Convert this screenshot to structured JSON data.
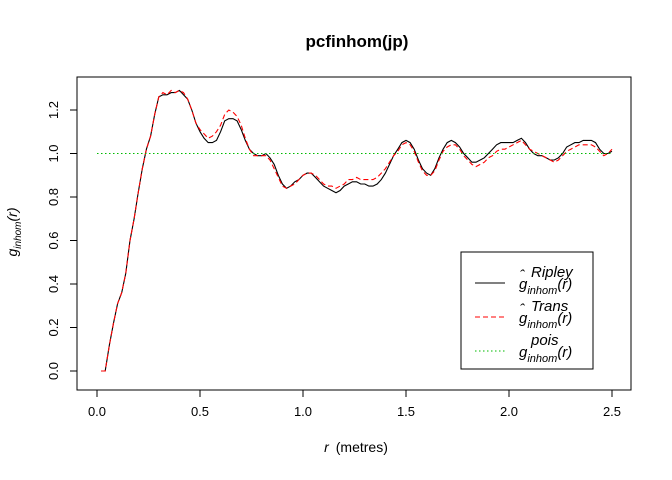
{
  "chart_data": {
    "type": "line",
    "title": "pcfinhom(jp)",
    "xlabel": {
      "symbol": "r",
      "unit": "(metres)"
    },
    "ylabel": {
      "main": "g",
      "subscript": "inhom",
      "arg": "(r)"
    },
    "xlim": [
      0,
      2.5
    ],
    "ylim": [
      0,
      1.3
    ],
    "x_ticks": [
      "0.0",
      "0.5",
      "1.0",
      "1.5",
      "2.0",
      "2.5"
    ],
    "y_ticks": [
      "0.0",
      "0.2",
      "0.4",
      "0.6",
      "0.8",
      "1.0",
      "1.2"
    ],
    "legend_position": "bottom-right",
    "grid": false,
    "series": [
      {
        "name": "Ripley",
        "label": {
          "hat": true,
          "main": "g",
          "sub": "inhom",
          "sup": "Ripley",
          "arg": "(r)"
        },
        "color": "#000000",
        "dash": "solid",
        "points": [
          [
            0.02,
            0.0
          ],
          [
            0.04,
            0.0
          ],
          [
            0.06,
            0.12
          ],
          [
            0.08,
            0.22
          ],
          [
            0.1,
            0.31
          ],
          [
            0.12,
            0.36
          ],
          [
            0.14,
            0.45
          ],
          [
            0.16,
            0.6
          ],
          [
            0.18,
            0.7
          ],
          [
            0.2,
            0.82
          ],
          [
            0.22,
            0.93
          ],
          [
            0.24,
            1.02
          ],
          [
            0.26,
            1.08
          ],
          [
            0.28,
            1.18
          ],
          [
            0.3,
            1.26
          ],
          [
            0.32,
            1.27
          ],
          [
            0.34,
            1.27
          ],
          [
            0.36,
            1.28
          ],
          [
            0.38,
            1.28
          ],
          [
            0.4,
            1.29
          ],
          [
            0.42,
            1.27
          ],
          [
            0.44,
            1.25
          ],
          [
            0.46,
            1.2
          ],
          [
            0.48,
            1.14
          ],
          [
            0.5,
            1.1
          ],
          [
            0.52,
            1.07
          ],
          [
            0.54,
            1.05
          ],
          [
            0.56,
            1.05
          ],
          [
            0.58,
            1.06
          ],
          [
            0.6,
            1.1
          ],
          [
            0.62,
            1.15
          ],
          [
            0.64,
            1.16
          ],
          [
            0.66,
            1.16
          ],
          [
            0.68,
            1.15
          ],
          [
            0.7,
            1.11
          ],
          [
            0.72,
            1.06
          ],
          [
            0.74,
            1.02
          ],
          [
            0.76,
            1.0
          ],
          [
            0.78,
            0.99
          ],
          [
            0.8,
            0.99
          ],
          [
            0.82,
            1.0
          ],
          [
            0.84,
            0.98
          ],
          [
            0.86,
            0.95
          ],
          [
            0.88,
            0.9
          ],
          [
            0.9,
            0.86
          ],
          [
            0.92,
            0.84
          ],
          [
            0.94,
            0.85
          ],
          [
            0.96,
            0.87
          ],
          [
            0.98,
            0.88
          ],
          [
            1.0,
            0.9
          ],
          [
            1.02,
            0.91
          ],
          [
            1.04,
            0.91
          ],
          [
            1.06,
            0.89
          ],
          [
            1.08,
            0.87
          ],
          [
            1.1,
            0.85
          ],
          [
            1.12,
            0.84
          ],
          [
            1.14,
            0.83
          ],
          [
            1.16,
            0.82
          ],
          [
            1.18,
            0.83
          ],
          [
            1.2,
            0.85
          ],
          [
            1.22,
            0.86
          ],
          [
            1.24,
            0.87
          ],
          [
            1.26,
            0.87
          ],
          [
            1.28,
            0.86
          ],
          [
            1.3,
            0.86
          ],
          [
            1.32,
            0.85
          ],
          [
            1.34,
            0.85
          ],
          [
            1.36,
            0.86
          ],
          [
            1.38,
            0.88
          ],
          [
            1.4,
            0.91
          ],
          [
            1.42,
            0.95
          ],
          [
            1.44,
            0.99
          ],
          [
            1.46,
            1.02
          ],
          [
            1.48,
            1.05
          ],
          [
            1.5,
            1.06
          ],
          [
            1.52,
            1.05
          ],
          [
            1.54,
            1.02
          ],
          [
            1.56,
            0.97
          ],
          [
            1.58,
            0.93
          ],
          [
            1.6,
            0.91
          ],
          [
            1.62,
            0.9
          ],
          [
            1.64,
            0.93
          ],
          [
            1.66,
            0.98
          ],
          [
            1.68,
            1.02
          ],
          [
            1.7,
            1.05
          ],
          [
            1.72,
            1.06
          ],
          [
            1.74,
            1.05
          ],
          [
            1.76,
            1.03
          ],
          [
            1.78,
            1.0
          ],
          [
            1.8,
            0.98
          ],
          [
            1.82,
            0.96
          ],
          [
            1.84,
            0.96
          ],
          [
            1.86,
            0.97
          ],
          [
            1.88,
            0.98
          ],
          [
            1.9,
            1.0
          ],
          [
            1.92,
            1.02
          ],
          [
            1.94,
            1.04
          ],
          [
            1.96,
            1.05
          ],
          [
            1.98,
            1.05
          ],
          [
            2.0,
            1.05
          ],
          [
            2.02,
            1.05
          ],
          [
            2.04,
            1.06
          ],
          [
            2.06,
            1.07
          ],
          [
            2.08,
            1.05
          ],
          [
            2.1,
            1.02
          ],
          [
            2.12,
            1.0
          ],
          [
            2.14,
            0.99
          ],
          [
            2.16,
            0.99
          ],
          [
            2.18,
            0.98
          ],
          [
            2.2,
            0.97
          ],
          [
            2.22,
            0.97
          ],
          [
            2.24,
            0.98
          ],
          [
            2.26,
            1.0
          ],
          [
            2.28,
            1.03
          ],
          [
            2.3,
            1.04
          ],
          [
            2.32,
            1.05
          ],
          [
            2.34,
            1.05
          ],
          [
            2.36,
            1.06
          ],
          [
            2.38,
            1.06
          ],
          [
            2.4,
            1.06
          ],
          [
            2.42,
            1.05
          ],
          [
            2.44,
            1.02
          ],
          [
            2.46,
            1.0
          ],
          [
            2.48,
            1.0
          ],
          [
            2.5,
            1.01
          ]
        ]
      },
      {
        "name": "Trans",
        "label": {
          "hat": true,
          "main": "g",
          "sub": "inhom",
          "sup": "Trans",
          "arg": "(r)"
        },
        "color": "#ff0000",
        "dash": "dashed",
        "points": [
          [
            0.02,
            0.0
          ],
          [
            0.04,
            0.0
          ],
          [
            0.06,
            0.12
          ],
          [
            0.08,
            0.22
          ],
          [
            0.1,
            0.31
          ],
          [
            0.12,
            0.36
          ],
          [
            0.14,
            0.45
          ],
          [
            0.16,
            0.6
          ],
          [
            0.18,
            0.7
          ],
          [
            0.2,
            0.82
          ],
          [
            0.22,
            0.93
          ],
          [
            0.24,
            1.02
          ],
          [
            0.26,
            1.08
          ],
          [
            0.28,
            1.18
          ],
          [
            0.3,
            1.26
          ],
          [
            0.32,
            1.28
          ],
          [
            0.34,
            1.27
          ],
          [
            0.36,
            1.29
          ],
          [
            0.38,
            1.28
          ],
          [
            0.4,
            1.29
          ],
          [
            0.42,
            1.28
          ],
          [
            0.44,
            1.25
          ],
          [
            0.46,
            1.2
          ],
          [
            0.48,
            1.14
          ],
          [
            0.5,
            1.11
          ],
          [
            0.52,
            1.09
          ],
          [
            0.54,
            1.07
          ],
          [
            0.56,
            1.08
          ],
          [
            0.58,
            1.1
          ],
          [
            0.6,
            1.13
          ],
          [
            0.62,
            1.18
          ],
          [
            0.64,
            1.2
          ],
          [
            0.66,
            1.19
          ],
          [
            0.68,
            1.17
          ],
          [
            0.7,
            1.13
          ],
          [
            0.72,
            1.07
          ],
          [
            0.74,
            1.02
          ],
          [
            0.76,
            0.99
          ],
          [
            0.78,
            0.99
          ],
          [
            0.8,
            0.99
          ],
          [
            0.82,
            0.99
          ],
          [
            0.84,
            0.97
          ],
          [
            0.86,
            0.93
          ],
          [
            0.88,
            0.89
          ],
          [
            0.9,
            0.85
          ],
          [
            0.92,
            0.84
          ],
          [
            0.94,
            0.85
          ],
          [
            0.96,
            0.86
          ],
          [
            0.98,
            0.88
          ],
          [
            1.0,
            0.9
          ],
          [
            1.02,
            0.91
          ],
          [
            1.04,
            0.91
          ],
          [
            1.06,
            0.9
          ],
          [
            1.08,
            0.88
          ],
          [
            1.1,
            0.86
          ],
          [
            1.12,
            0.85
          ],
          [
            1.14,
            0.85
          ],
          [
            1.16,
            0.84
          ],
          [
            1.18,
            0.85
          ],
          [
            1.2,
            0.86
          ],
          [
            1.22,
            0.88
          ],
          [
            1.24,
            0.88
          ],
          [
            1.26,
            0.89
          ],
          [
            1.28,
            0.88
          ],
          [
            1.3,
            0.88
          ],
          [
            1.32,
            0.88
          ],
          [
            1.34,
            0.88
          ],
          [
            1.36,
            0.89
          ],
          [
            1.38,
            0.91
          ],
          [
            1.4,
            0.93
          ],
          [
            1.42,
            0.96
          ],
          [
            1.44,
            0.99
          ],
          [
            1.46,
            1.01
          ],
          [
            1.48,
            1.04
          ],
          [
            1.5,
            1.05
          ],
          [
            1.52,
            1.04
          ],
          [
            1.54,
            1.01
          ],
          [
            1.56,
            0.96
          ],
          [
            1.58,
            0.92
          ],
          [
            1.6,
            0.9
          ],
          [
            1.62,
            0.9
          ],
          [
            1.64,
            0.92
          ],
          [
            1.66,
            0.97
          ],
          [
            1.68,
            1.01
          ],
          [
            1.7,
            1.03
          ],
          [
            1.72,
            1.04
          ],
          [
            1.74,
            1.04
          ],
          [
            1.76,
            1.02
          ],
          [
            1.78,
            0.99
          ],
          [
            1.8,
            0.97
          ],
          [
            1.82,
            0.95
          ],
          [
            1.84,
            0.94
          ],
          [
            1.86,
            0.95
          ],
          [
            1.88,
            0.96
          ],
          [
            1.9,
            0.98
          ],
          [
            1.92,
            0.99
          ],
          [
            1.94,
            1.01
          ],
          [
            1.96,
            1.02
          ],
          [
            1.98,
            1.02
          ],
          [
            2.0,
            1.03
          ],
          [
            2.02,
            1.04
          ],
          [
            2.04,
            1.05
          ],
          [
            2.06,
            1.06
          ],
          [
            2.08,
            1.04
          ],
          [
            2.1,
            1.02
          ],
          [
            2.12,
            1.01
          ],
          [
            2.14,
            1.0
          ],
          [
            2.16,
            0.99
          ],
          [
            2.18,
            0.98
          ],
          [
            2.2,
            0.97
          ],
          [
            2.22,
            0.96
          ],
          [
            2.24,
            0.97
          ],
          [
            2.26,
            0.99
          ],
          [
            2.28,
            1.01
          ],
          [
            2.3,
            1.02
          ],
          [
            2.32,
            1.03
          ],
          [
            2.34,
            1.04
          ],
          [
            2.36,
            1.04
          ],
          [
            2.38,
            1.04
          ],
          [
            2.4,
            1.04
          ],
          [
            2.42,
            1.03
          ],
          [
            2.44,
            1.01
          ],
          [
            2.46,
            0.99
          ],
          [
            2.48,
            1.0
          ],
          [
            2.5,
            1.02
          ]
        ]
      },
      {
        "name": "pois",
        "label": {
          "hat": false,
          "main": "g",
          "sub": "inhom",
          "sup": "pois",
          "arg": "(r)"
        },
        "color": "#00bb00",
        "dash": "dotted",
        "points": [
          [
            0.0,
            1.0
          ],
          [
            2.5,
            1.0
          ]
        ]
      }
    ]
  }
}
